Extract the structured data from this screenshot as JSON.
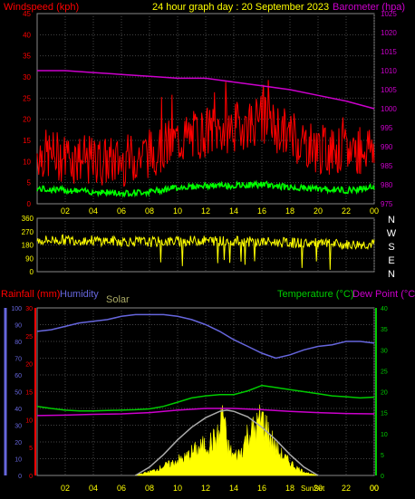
{
  "header": {
    "windspeed_label": "Windspeed (kph)",
    "title": "24 hour graph day : 20 September 2023",
    "barometer_label": "Barometer (hpa)"
  },
  "lower_header": {
    "rainfall_label": "Rainfall (mm)",
    "humidity_label": "Humidity",
    "solar_label": "Solar",
    "temperature_label": "Temperature (°C)",
    "dewpoint_label": "Dew Point (°C)"
  },
  "sun_label": "SunSet",
  "colors": {
    "wind": "#ff0000",
    "gust_green": "#00ff00",
    "barometer": "#cc00cc",
    "direction": "#ffff00",
    "humidity": "#6666dd",
    "temperature": "#00cc00",
    "dewpoint": "#cc00cc",
    "solar_fill": "#ffff00",
    "solar_max": "#aaaaaa",
    "rain": "#ff0000",
    "grid": "#444444"
  },
  "chart_data": [
    {
      "type": "line",
      "name": "wind-barometer",
      "xlim": [
        0,
        24
      ],
      "x_ticks": [
        "02",
        "04",
        "06",
        "08",
        "10",
        "12",
        "14",
        "16",
        "18",
        "20",
        "22",
        "00"
      ],
      "y_left_ticks": [
        "0",
        "5",
        "10",
        "15",
        "20",
        "25",
        "30",
        "35",
        "40",
        "45"
      ],
      "y_left_lim": [
        0,
        45
      ],
      "y_right_ticks": [
        "975",
        "980",
        "985",
        "990",
        "995",
        "1000",
        "1005",
        "1010",
        "1015",
        "1020",
        "1025"
      ],
      "y_right_lim": [
        975,
        1025
      ],
      "barometer": {
        "x": [
          0,
          2,
          4,
          6,
          8,
          10,
          12,
          13,
          14,
          16,
          18,
          20,
          22,
          24
        ],
        "values": [
          1010,
          1010,
          1009.5,
          1009,
          1008.5,
          1008,
          1008,
          1007.5,
          1007,
          1006,
          1005,
          1003.5,
          1002,
          1000
        ]
      },
      "wind_avg_profile": {
        "x": [
          0,
          2,
          4,
          6,
          8,
          10,
          12,
          14,
          16,
          18,
          20,
          22,
          24
        ],
        "values": [
          8,
          7,
          6,
          5,
          6,
          9,
          10,
          10,
          11,
          9,
          8,
          7,
          9
        ]
      },
      "wind_gust_profile": {
        "x": [
          0,
          2,
          4,
          6,
          8,
          10,
          12,
          14,
          16,
          18,
          20,
          22,
          24
        ],
        "values": [
          12,
          11,
          10,
          10,
          12,
          15,
          17,
          18,
          20,
          16,
          13,
          12,
          14
        ]
      }
    },
    {
      "type": "scatter",
      "name": "wind-direction",
      "xlim": [
        0,
        24
      ],
      "y_ticks": [
        "360",
        "270",
        "180",
        "90",
        "0"
      ],
      "ylim": [
        0,
        360
      ],
      "compass_labels": [
        "N",
        "W",
        "S",
        "E",
        "N"
      ],
      "direction_profile": {
        "x": [
          0,
          2,
          4,
          6,
          8,
          10,
          12,
          14,
          16,
          18,
          20,
          22,
          24
        ],
        "values": [
          210,
          215,
          210,
          205,
          200,
          205,
          210,
          205,
          200,
          195,
          190,
          180,
          185
        ]
      }
    },
    {
      "type": "line",
      "name": "temp-humidity-solar",
      "xlim": [
        0,
        24
      ],
      "x_ticks": [
        "02",
        "04",
        "06",
        "08",
        "10",
        "12",
        "14",
        "16",
        "18",
        "20",
        "22",
        "00"
      ],
      "humidity_ticks": [
        "0",
        "10",
        "20",
        "30",
        "40",
        "50",
        "60",
        "70",
        "80",
        "90",
        "100"
      ],
      "humidity_lim": [
        0,
        100
      ],
      "rain_ticks": [
        "0",
        "5",
        "10",
        "15",
        "20",
        "25",
        "30"
      ],
      "rain_lim": [
        0,
        30
      ],
      "temp_ticks": [
        "0",
        "5",
        "10",
        "15",
        "20",
        "25",
        "30",
        "35",
        "40"
      ],
      "temp_lim": [
        0,
        40
      ],
      "humidity": {
        "x": [
          0,
          1,
          2,
          3,
          4,
          5,
          6,
          7,
          8,
          9,
          10,
          11,
          12,
          13,
          14,
          15,
          16,
          17,
          18,
          19,
          20,
          21,
          22,
          23,
          24
        ],
        "values": [
          86,
          87,
          89,
          91,
          92,
          93,
          95,
          96,
          96,
          96,
          95,
          93,
          90,
          86,
          81,
          77,
          73,
          70,
          72,
          75,
          77,
          78,
          80,
          80,
          79
        ]
      },
      "temperature": {
        "x": [
          0,
          1,
          2,
          3,
          4,
          5,
          6,
          7,
          8,
          9,
          10,
          11,
          12,
          13,
          14,
          15,
          16,
          17,
          18,
          19,
          20,
          21,
          22,
          23,
          24
        ],
        "values": [
          16.5,
          16,
          15.6,
          15.4,
          15.4,
          15.5,
          15.6,
          15.7,
          15.9,
          16.5,
          17.5,
          18.5,
          19,
          19.3,
          19.3,
          20.2,
          21.5,
          21,
          20.5,
          20,
          19.5,
          19,
          18.8,
          18.5,
          18.7
        ]
      },
      "dewpoint": {
        "x": [
          0,
          2,
          4,
          6,
          8,
          10,
          12,
          14,
          16,
          18,
          20,
          22,
          24
        ],
        "values": [
          14.3,
          14.4,
          14.6,
          14.7,
          15,
          15.6,
          16,
          16,
          15.7,
          15.3,
          15,
          14.8,
          14.7
        ]
      },
      "solar_max": {
        "x": [
          7,
          8,
          9,
          10,
          11,
          12,
          13,
          13.5,
          14,
          15,
          16,
          17,
          18,
          19,
          20
        ],
        "values": [
          0,
          2,
          5,
          8.5,
          11.5,
          13.8,
          15.3,
          15.6,
          15.3,
          14,
          11.5,
          8.5,
          5,
          2,
          0
        ]
      },
      "solar": {
        "x": [
          7,
          7.5,
          8,
          8.5,
          9,
          9.5,
          10,
          10.5,
          11,
          11.5,
          12,
          12.5,
          13,
          13.2,
          13.5,
          14,
          14.5,
          15,
          15.5,
          16,
          16.5,
          17,
          17.5,
          18,
          18.5,
          19,
          19.5,
          20
        ],
        "values": [
          0.2,
          0.5,
          1,
          1.5,
          2.5,
          3,
          4,
          4.5,
          6,
          7,
          8,
          9,
          10.5,
          18.5,
          8,
          5,
          6,
          11,
          12,
          15,
          11,
          7,
          5,
          3.5,
          2,
          1,
          0.4,
          0
        ]
      }
    }
  ]
}
